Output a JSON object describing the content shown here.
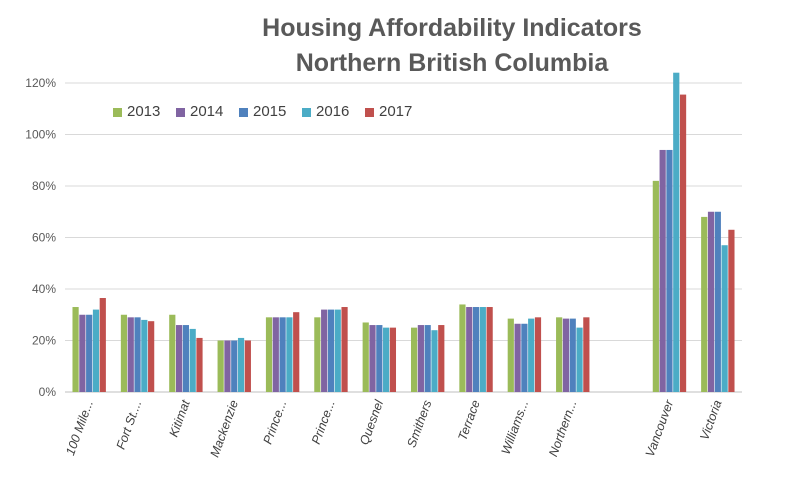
{
  "chart_data": {
    "type": "bar",
    "title_lines": [
      "Housing Affordability Indicators",
      "Northern British Columbia"
    ],
    "xlabel": "",
    "ylabel": "",
    "ylim": [
      0,
      1.2
    ],
    "yticks": [
      0,
      0.2,
      0.4,
      0.6,
      0.8,
      1.0,
      1.2
    ],
    "ytick_labels": [
      "0%",
      "20%",
      "40%",
      "60%",
      "80%",
      "100%",
      "120%"
    ],
    "grid": true,
    "legend_position": "top-left",
    "categories": [
      "100 Mile...",
      "Fort St....",
      "Kitimat",
      "Mackenzie",
      "Prince...",
      "Prince...",
      "Quesnel",
      "Smithers",
      "Terrace",
      "Williams...",
      "Northern...",
      "",
      "Vancouver",
      "Victoria"
    ],
    "series": [
      {
        "name": "2013",
        "color": "#9bbb59",
        "values": [
          0.33,
          0.3,
          0.3,
          0.2,
          0.29,
          0.29,
          0.27,
          0.25,
          0.34,
          0.285,
          0.29,
          null,
          0.82,
          0.68
        ]
      },
      {
        "name": "2014",
        "color": "#8064a2",
        "values": [
          0.3,
          0.29,
          0.26,
          0.2,
          0.29,
          0.32,
          0.26,
          0.26,
          0.33,
          0.265,
          0.285,
          null,
          0.94,
          0.7
        ]
      },
      {
        "name": "2015",
        "color": "#4f81bd",
        "values": [
          0.3,
          0.29,
          0.26,
          0.2,
          0.29,
          0.32,
          0.26,
          0.26,
          0.33,
          0.265,
          0.285,
          null,
          0.94,
          0.7
        ]
      },
      {
        "name": "2016",
        "color": "#4bacc6",
        "values": [
          0.32,
          0.28,
          0.245,
          0.21,
          0.29,
          0.32,
          0.25,
          0.24,
          0.33,
          0.285,
          0.25,
          null,
          1.24,
          0.57
        ]
      },
      {
        "name": "2017",
        "color": "#c0504d",
        "values": [
          0.365,
          0.275,
          0.21,
          0.2,
          0.31,
          0.33,
          0.25,
          0.26,
          0.33,
          0.29,
          0.29,
          null,
          1.155,
          0.63
        ]
      }
    ]
  }
}
